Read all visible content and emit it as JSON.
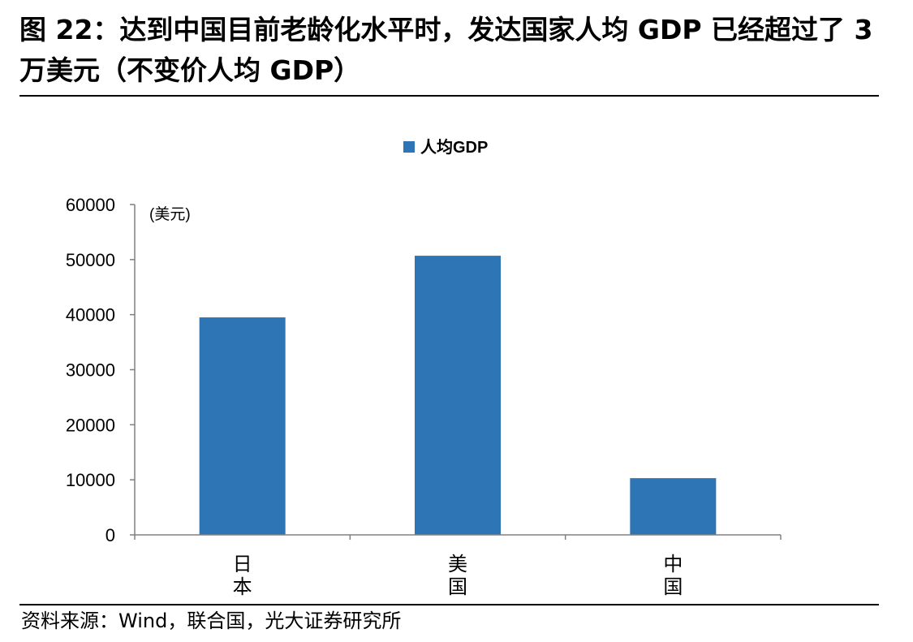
{
  "title": "图 22：达到中国目前老龄化水平时，发达国家人均 GDP 已经超过了 3 万美元（不变价人均 GDP）",
  "source": "资料来源：Wind，联合国，光大证券研究所",
  "chart_data": {
    "type": "bar",
    "categories": [
      "日本",
      "美国",
      "中国"
    ],
    "series": [
      {
        "name": "人均GDP",
        "values": [
          39500,
          50700,
          10300
        ]
      }
    ],
    "unit_label": "(美元)",
    "ylim": [
      0,
      60000
    ],
    "yticks": [
      "0",
      "10000",
      "20000",
      "30000",
      "40000",
      "50000",
      "60000"
    ],
    "legend_position": "top-center",
    "grid": false,
    "bar_color": "#2E75B6"
  }
}
